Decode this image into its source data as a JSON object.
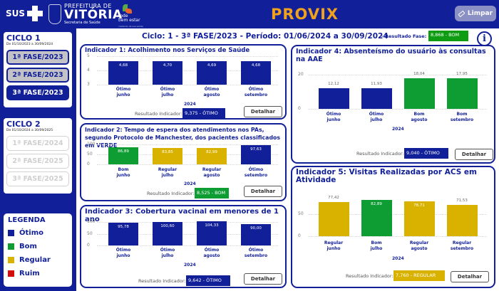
{
  "header": {
    "logos": {
      "sus": "SUS",
      "prefeitura_line1": "PREFEITURA DE",
      "prefeitura_line2": "VITÓRIA",
      "prefeitura_line3": "Secretaria de Saúde",
      "rede_line1": "rede",
      "rede_line2": "bem estar",
      "rede_line3": "cuidando da sua saúde"
    },
    "app_title": "PROVIX",
    "clear_button": "Limpar"
  },
  "sidebar": {
    "ciclos": [
      {
        "title": "CICLO 1",
        "date_range": "De 01/10/2023 a 30/09/2024",
        "phases": [
          {
            "label": "1ª FASE/2023",
            "state": "normal"
          },
          {
            "label": "2ª FASE/2023",
            "state": "normal"
          },
          {
            "label": "3ª FASE/2023",
            "state": "active"
          }
        ]
      },
      {
        "title": "CICLO 2",
        "date_range": "De 01/10/2024 a 30/09/2025",
        "phases": [
          {
            "label": "1ª FASE/2024",
            "state": "disabled"
          },
          {
            "label": "2ª FASE/2025",
            "state": "disabled"
          },
          {
            "label": "3ª FASE/2025",
            "state": "disabled"
          }
        ]
      }
    ],
    "legend": {
      "title": "LEGENDA",
      "items": [
        {
          "label": "Ótimo",
          "color": "#111f99"
        },
        {
          "label": "Bom",
          "color": "#0e9d33"
        },
        {
          "label": "Regular",
          "color": "#d9b200"
        },
        {
          "label": "Ruim",
          "color": "#d40b0b"
        }
      ]
    }
  },
  "subheader": {
    "period": "Ciclo: 1 - 3ª FASE/2023 - Período: 01/06/2024 a 30/09/2024",
    "result_label": "- Resultado Fase:",
    "result_value": "8,868 - BOM",
    "info_icon": "i"
  },
  "common": {
    "result_label": "Resultado Indicador:",
    "detail_button": "Detalhar",
    "year": "2024"
  },
  "chart_data": [
    {
      "type": "bar",
      "title": "Indicador 1: Acolhimento nos Serviços de Saúde",
      "categories": [
        "junho",
        "julho",
        "agosto",
        "setembro"
      ],
      "xgroup": "2024",
      "yticks": [
        "5",
        "4",
        "3"
      ],
      "ylim": [
        3,
        5
      ],
      "values": [
        4.68,
        4.7,
        4.69,
        4.68
      ],
      "labels": [
        "4,68",
        "4,70",
        "4,69",
        "4,68"
      ],
      "classes": [
        "Ótimo",
        "Ótimo",
        "Ótimo",
        "Ótimo"
      ],
      "result": "9,375 - ÓTIMO"
    },
    {
      "type": "bar",
      "title": "Indicador 2: Tempo de espera dos atendimentos nos PAs, segundo Protocolo de Manchester, dos pacientes classificados em VERDE",
      "categories": [
        "junho",
        "julho",
        "agosto",
        "setembro"
      ],
      "xgroup": "2024",
      "yticks": [
        "100",
        "50",
        "0"
      ],
      "ylim": [
        0,
        100
      ],
      "values": [
        86.89,
        83.85,
        82.99,
        97.63
      ],
      "labels": [
        "86,89",
        "83,85",
        "82,99",
        "97,63"
      ],
      "classes": [
        "Bom",
        "Regular",
        "Regular",
        "Ótimo"
      ],
      "result": "8,525 - BOM"
    },
    {
      "type": "bar",
      "title": "Indicador 3: Cobertura vacinal em menores de 1 ano",
      "categories": [
        "junho",
        "julho",
        "agosto",
        "setembro"
      ],
      "xgroup": "2024",
      "yticks": [
        "100",
        "50",
        "0"
      ],
      "ylim": [
        0,
        100
      ],
      "values": [
        95.78,
        100.6,
        104.33,
        90.0
      ],
      "labels": [
        "95,78",
        "100,60",
        "104,33",
        "90,00"
      ],
      "classes": [
        "Ótimo",
        "Ótimo",
        "Ótimo",
        "Ótimo"
      ],
      "result": "9,642 - ÓTIMO"
    },
    {
      "type": "bar",
      "title": "Indicador 4: Absenteísmo do usuário às consultas na AAE",
      "categories": [
        "junho",
        "julho",
        "agosto",
        "setembro"
      ],
      "xgroup": "2024",
      "yticks": [
        "20",
        "0"
      ],
      "ylim": [
        0,
        20
      ],
      "values": [
        12.12,
        11.93,
        18.04,
        17.95
      ],
      "labels": [
        "12,12",
        "11,93",
        "18,04",
        "17,95"
      ],
      "classes": [
        "Ótimo",
        "Ótimo",
        "Bom",
        "Bom"
      ],
      "result": "9,040 - ÓTIMO"
    },
    {
      "type": "bar",
      "title": "Indicador 5: Visitas Realizadas por ACS em Atividade",
      "categories": [
        "junho",
        "julho",
        "agosto",
        "setembro"
      ],
      "xgroup": "2024",
      "yticks": [
        "50",
        "0"
      ],
      "ylim": [
        0,
        100
      ],
      "values": [
        77.42,
        82.89,
        78.71,
        71.53
      ],
      "labels": [
        "77,42",
        "82,89",
        "78,71",
        "71,53"
      ],
      "classes": [
        "Regular",
        "Bom",
        "Regular",
        "Regular"
      ],
      "result": "7,760 - REGULAR"
    }
  ]
}
